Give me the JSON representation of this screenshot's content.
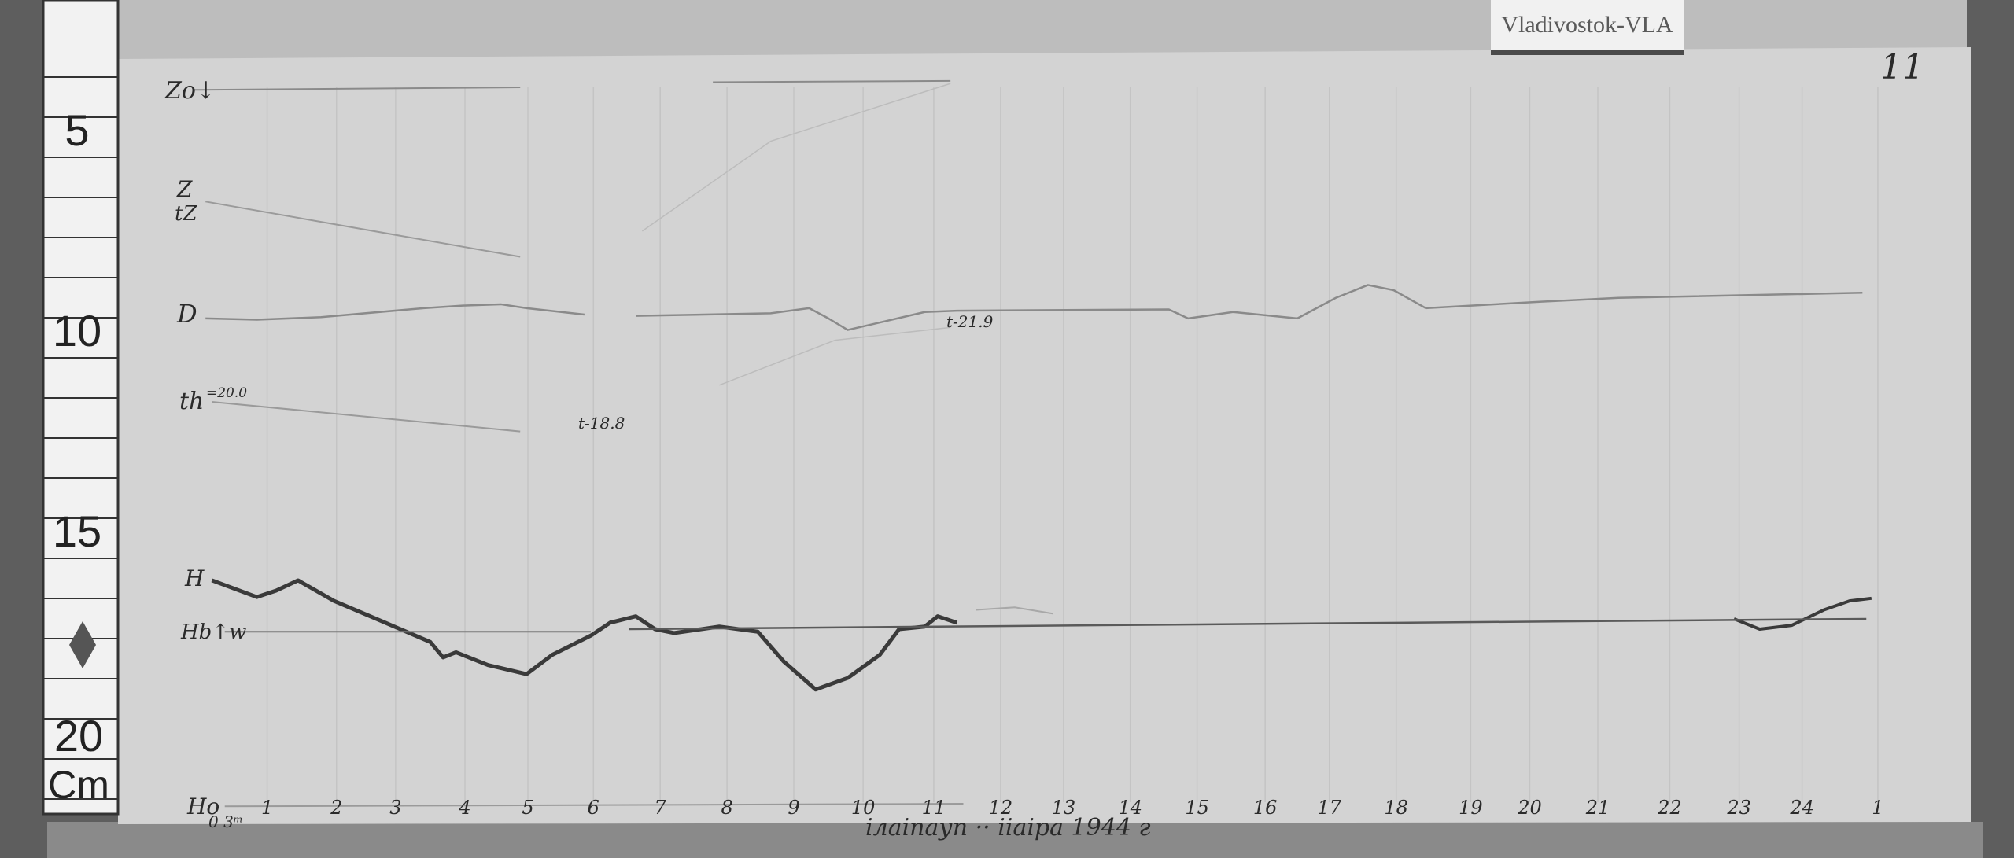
{
  "station_label": "Vladivostok-VLA",
  "sheet_number": "11",
  "ruler": {
    "marks": [
      "5",
      "10",
      "15",
      "20"
    ],
    "unit": "Cm"
  },
  "trace_labels": {
    "zo": "Zo↓",
    "z": "Z",
    "tz": "tZ",
    "d": "D",
    "th": "th",
    "th_value": "=20.0",
    "h": "H",
    "h_base": "Hb↑w",
    "ho": "Ho"
  },
  "annotations": {
    "t_mid": "t-18.8",
    "t_d": "t-21.9"
  },
  "hour_labels": [
    "1",
    "2",
    "3",
    "4",
    "5",
    "6",
    "7",
    "8",
    "9",
    "10",
    "11",
    "12",
    "13",
    "14",
    "15",
    "16",
    "17",
    "18",
    "19",
    "20",
    "21",
    "22",
    "23",
    "24",
    "1"
  ],
  "start_label": "0 3ᵐ",
  "footer_text": "ілаіпауп ·· ііаіра 1944 г",
  "colors": {
    "paper": "#d3d3d3",
    "trace": "#3a3a3a",
    "background": "#5e5e5e"
  }
}
